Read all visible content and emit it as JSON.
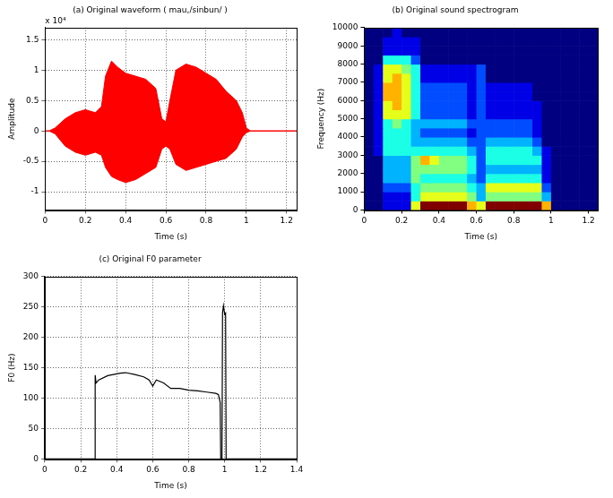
{
  "chart_data": [
    {
      "type": "band",
      "title": "(a) Original waveform ( mau,/sinbun/ )",
      "x_label": "Time (s)",
      "y_label": "Amplitude",
      "annotations": [
        {
          "text": "x 10⁴"
        }
      ],
      "x": [
        0,
        0.02,
        0.05,
        0.1,
        0.15,
        0.2,
        0.25,
        0.28,
        0.3,
        0.33,
        0.36,
        0.4,
        0.45,
        0.5,
        0.55,
        0.58,
        0.6,
        0.62,
        0.65,
        0.7,
        0.75,
        0.8,
        0.85,
        0.9,
        0.95,
        0.98,
        1.0,
        1.02,
        1.25
      ],
      "high": [
        0,
        0,
        0.05,
        0.2,
        0.3,
        0.35,
        0.3,
        0.4,
        0.9,
        1.15,
        1.05,
        0.95,
        0.9,
        0.85,
        0.7,
        0.2,
        0.15,
        0.5,
        1.0,
        1.1,
        1.05,
        0.95,
        0.85,
        0.65,
        0.5,
        0.3,
        0.05,
        0,
        0
      ],
      "low": [
        0,
        0,
        -0.05,
        -0.25,
        -0.35,
        -0.4,
        -0.35,
        -0.4,
        -0.6,
        -0.75,
        -0.8,
        -0.85,
        -0.8,
        -0.7,
        -0.6,
        -0.3,
        -0.25,
        -0.3,
        -0.55,
        -0.65,
        -0.6,
        -0.55,
        -0.5,
        -0.45,
        -0.3,
        -0.1,
        -0.03,
        0,
        0
      ],
      "color": "#ff0000",
      "xlim": [
        0,
        1.25
      ],
      "xticks": [
        0,
        0.2,
        0.4,
        0.6,
        0.8,
        1,
        1.2
      ],
      "ylim": [
        -1.3,
        1.7
      ],
      "yticks": [
        -1,
        -0.5,
        0,
        0.5,
        1,
        1.5
      ],
      "grid": true
    },
    {
      "type": "heatmap",
      "title": "(b) Original sound spectrogram",
      "x_label": "Time (s)",
      "y_label": "Frequency (Hz)",
      "x_edges": [
        0,
        0.05,
        0.1,
        0.15,
        0.2,
        0.25,
        0.3,
        0.35,
        0.4,
        0.45,
        0.5,
        0.55,
        0.6,
        0.65,
        0.7,
        0.75,
        0.8,
        0.85,
        0.9,
        0.95,
        1.0,
        1.05,
        1.1,
        1.15,
        1.2,
        1.25
      ],
      "y_edges": [
        0,
        500,
        1000,
        1500,
        2000,
        2500,
        3000,
        3500,
        4000,
        4500,
        5000,
        5500,
        6000,
        6500,
        7000,
        7500,
        8000,
        8500,
        9000,
        9500,
        10000
      ],
      "cells": [
        [
          0,
          0,
          1,
          1,
          1,
          6,
          10,
          10,
          10,
          10,
          10,
          7,
          6,
          10,
          10,
          10,
          10,
          10,
          10,
          7,
          0,
          0,
          0,
          0,
          0
        ],
        [
          0,
          0,
          1,
          1,
          1,
          4,
          6,
          6,
          6,
          6,
          6,
          5,
          3,
          5,
          5,
          5,
          5,
          5,
          5,
          3,
          0,
          0,
          0,
          0,
          0
        ],
        [
          0,
          0,
          2,
          2,
          2,
          4,
          5,
          5,
          5,
          5,
          5,
          4,
          3,
          6,
          6,
          6,
          6,
          6,
          6,
          2,
          0,
          0,
          0,
          0,
          0
        ],
        [
          0,
          0,
          3,
          3,
          3,
          5,
          4,
          4,
          4,
          4,
          4,
          3,
          2,
          4,
          4,
          4,
          4,
          4,
          4,
          1,
          0,
          0,
          0,
          0,
          0
        ],
        [
          0,
          0,
          3,
          3,
          3,
          5,
          5,
          5,
          5,
          5,
          5,
          4,
          2,
          3,
          3,
          3,
          3,
          3,
          3,
          1,
          0,
          0,
          0,
          0,
          0
        ],
        [
          0,
          0,
          3,
          3,
          3,
          5,
          7,
          6,
          5,
          5,
          5,
          4,
          2,
          4,
          4,
          4,
          4,
          4,
          4,
          1,
          0,
          0,
          0,
          0,
          0
        ],
        [
          0,
          1,
          4,
          4,
          4,
          4,
          4,
          4,
          4,
          4,
          4,
          3,
          2,
          4,
          4,
          4,
          4,
          4,
          3,
          1,
          0,
          0,
          0,
          0,
          0
        ],
        [
          0,
          1,
          4,
          4,
          4,
          3,
          3,
          3,
          3,
          3,
          3,
          2,
          2,
          3,
          3,
          3,
          3,
          3,
          2,
          0,
          0,
          0,
          0,
          0,
          0
        ],
        [
          0,
          1,
          4,
          4,
          4,
          3,
          2,
          2,
          2,
          2,
          2,
          1,
          2,
          2,
          2,
          2,
          2,
          2,
          1,
          0,
          0,
          0,
          0,
          0,
          0
        ],
        [
          0,
          1,
          4,
          5,
          4,
          3,
          3,
          3,
          3,
          3,
          3,
          2,
          2,
          2,
          2,
          2,
          2,
          2,
          1,
          0,
          0,
          0,
          0,
          0,
          0
        ],
        [
          0,
          1,
          6,
          6,
          6,
          4,
          2,
          2,
          2,
          2,
          2,
          1,
          2,
          1,
          1,
          1,
          1,
          1,
          1,
          0,
          0,
          0,
          0,
          0,
          0
        ],
        [
          0,
          1,
          6,
          7,
          6,
          4,
          2,
          2,
          2,
          2,
          2,
          1,
          2,
          1,
          1,
          1,
          1,
          1,
          1,
          0,
          0,
          0,
          0,
          0,
          0
        ],
        [
          0,
          1,
          7,
          7,
          6,
          4,
          2,
          2,
          2,
          2,
          2,
          1,
          2,
          1,
          1,
          1,
          1,
          1,
          0,
          0,
          0,
          0,
          0,
          0,
          0
        ],
        [
          0,
          1,
          7,
          7,
          6,
          4,
          2,
          2,
          2,
          2,
          2,
          1,
          2,
          1,
          1,
          1,
          1,
          1,
          0,
          0,
          0,
          0,
          0,
          0,
          0
        ],
        [
          0,
          1,
          6,
          7,
          6,
          4,
          1,
          1,
          1,
          1,
          1,
          1,
          2,
          0,
          0,
          0,
          0,
          0,
          0,
          0,
          0,
          0,
          0,
          0,
          0
        ],
        [
          0,
          1,
          6,
          6,
          5,
          4,
          1,
          1,
          1,
          1,
          1,
          1,
          2,
          0,
          0,
          0,
          0,
          0,
          0,
          0,
          0,
          0,
          0,
          0,
          0
        ],
        [
          0,
          0,
          4,
          4,
          4,
          2,
          0,
          0,
          0,
          0,
          0,
          0,
          0,
          0,
          0,
          0,
          0,
          0,
          0,
          0,
          0,
          0,
          0,
          0,
          0
        ],
        [
          0,
          0,
          1,
          1,
          1,
          1,
          0,
          0,
          0,
          0,
          0,
          0,
          0,
          0,
          0,
          0,
          0,
          0,
          0,
          0,
          0,
          0,
          0,
          0,
          0
        ],
        [
          0,
          0,
          1,
          1,
          1,
          1,
          0,
          0,
          0,
          0,
          0,
          0,
          0,
          0,
          0,
          0,
          0,
          0,
          0,
          0,
          0,
          0,
          0,
          0,
          0
        ],
        [
          0,
          0,
          0,
          1,
          0,
          0,
          0,
          0,
          0,
          0,
          0,
          0,
          0,
          0,
          0,
          0,
          0,
          0,
          0,
          0,
          0,
          0,
          0,
          0,
          0
        ]
      ],
      "color_range": [
        0,
        10
      ],
      "xlim": [
        0,
        1.25
      ],
      "xticks": [
        0,
        0.2,
        0.4,
        0.6,
        0.8,
        1,
        1.2
      ],
      "ylim": [
        0,
        10000
      ],
      "yticks": [
        0,
        1000,
        2000,
        3000,
        4000,
        5000,
        6000,
        7000,
        8000,
        9000,
        10000
      ],
      "grid": false
    },
    {
      "type": "line",
      "title": "(c) Original F0 parameter",
      "x_label": "Time (s)",
      "y_label": "F0 (Hz)",
      "x": [
        0,
        0.28,
        0.28,
        0.285,
        0.3,
        0.35,
        0.42,
        0.45,
        0.5,
        0.55,
        0.58,
        0.6,
        0.62,
        0.66,
        0.7,
        0.75,
        0.8,
        0.85,
        0.9,
        0.95,
        0.965,
        0.975,
        0.978,
        0.985,
        0.988,
        0.993,
        1.0,
        1.005,
        1.008,
        1.4
      ],
      "values": [
        0,
        0,
        138,
        125,
        130,
        137,
        141,
        142,
        139,
        135,
        130,
        120,
        130,
        125,
        116,
        116,
        113,
        112,
        110,
        108,
        106,
        93,
        0,
        0,
        240,
        252,
        238,
        240,
        0,
        0
      ],
      "color": "#000000",
      "xlim": [
        0,
        1.4
      ],
      "xticks": [
        0,
        0.2,
        0.4,
        0.6,
        0.8,
        1,
        1.2,
        1.4
      ],
      "ylim": [
        0,
        300
      ],
      "yticks": [
        0,
        50,
        100,
        150,
        200,
        250,
        300
      ],
      "grid": true
    }
  ]
}
